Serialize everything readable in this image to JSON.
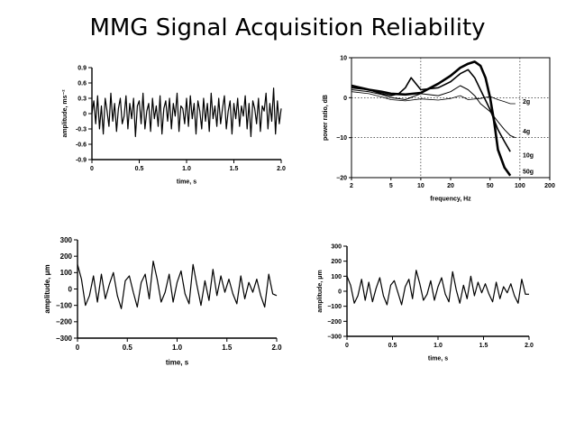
{
  "slide": {
    "title": "MMG Signal Acquisition Reliability"
  },
  "chart_data": [
    {
      "type": "line",
      "id": "acc",
      "title": "",
      "xlabel": "time, s",
      "ylabel": "amplitude, ms⁻²",
      "xlim": [
        0,
        2.0
      ],
      "ylim": [
        -0.9,
        0.9
      ],
      "xticks": [
        0,
        0.5,
        1.0,
        1.5,
        2.0
      ],
      "xtick_labels": [
        "0",
        "0.5",
        "1.0",
        "1.5",
        "2.0"
      ],
      "yticks": [
        0.9,
        0.6,
        0.3,
        0,
        -0.3,
        -0.6,
        -0.9
      ],
      "ytick_labels": [
        "0.9",
        "0.6",
        "0.3",
        "0",
        "-0.3",
        "-0.6",
        "-0.9"
      ],
      "x": [
        0,
        0.02,
        0.04,
        0.06,
        0.08,
        0.1,
        0.12,
        0.14,
        0.16,
        0.18,
        0.2,
        0.22,
        0.24,
        0.26,
        0.28,
        0.3,
        0.32,
        0.34,
        0.36,
        0.38,
        0.4,
        0.42,
        0.44,
        0.46,
        0.48,
        0.5,
        0.52,
        0.54,
        0.56,
        0.58,
        0.6,
        0.62,
        0.64,
        0.66,
        0.68,
        0.7,
        0.72,
        0.74,
        0.76,
        0.78,
        0.8,
        0.82,
        0.84,
        0.86,
        0.88,
        0.9,
        0.92,
        0.94,
        0.96,
        0.98,
        1.0,
        1.02,
        1.04,
        1.06,
        1.08,
        1.1,
        1.12,
        1.14,
        1.16,
        1.18,
        1.2,
        1.22,
        1.24,
        1.26,
        1.28,
        1.3,
        1.32,
        1.34,
        1.36,
        1.38,
        1.4,
        1.42,
        1.44,
        1.46,
        1.48,
        1.5,
        1.52,
        1.54,
        1.56,
        1.58,
        1.6,
        1.62,
        1.64,
        1.66,
        1.68,
        1.7,
        1.72,
        1.74,
        1.76,
        1.78,
        1.8,
        1.82,
        1.84,
        1.86,
        1.88,
        1.9,
        1.92,
        1.94,
        1.96,
        1.98,
        2.0
      ],
      "y": [
        0.0,
        0.25,
        -0.2,
        0.35,
        -0.3,
        0.15,
        -0.4,
        0.3,
        0.05,
        -0.25,
        0.4,
        -0.15,
        0.2,
        -0.35,
        0.1,
        0.3,
        -0.2,
        -0.05,
        0.35,
        -0.3,
        0.2,
        -0.1,
        0.3,
        -0.45,
        0.15,
        0.25,
        -0.2,
        0.4,
        -0.3,
        0.05,
        0.2,
        -0.35,
        0.3,
        -0.1,
        0.15,
        -0.25,
        0.35,
        -0.4,
        0.1,
        0.25,
        -0.15,
        0.3,
        -0.3,
        0.2,
        -0.05,
        0.4,
        -0.35,
        0.15,
        0.1,
        -0.2,
        0.3,
        -0.25,
        0.35,
        -0.1,
        0.2,
        -0.4,
        0.25,
        0.05,
        -0.3,
        0.3,
        -0.15,
        0.2,
        -0.35,
        0.4,
        -0.1,
        0.15,
        -0.25,
        0.3,
        -0.2,
        0.1,
        0.35,
        -0.3,
        0.05,
        0.25,
        -0.4,
        0.2,
        -0.1,
        0.3,
        -0.25,
        0.15,
        -0.05,
        0.35,
        -0.3,
        0.2,
        -0.45,
        0.25,
        0.1,
        -0.2,
        0.3,
        -0.35,
        0.15,
        0.05,
        0.4,
        -0.3,
        0.2,
        -0.15,
        0.5,
        -0.4,
        0.25,
        -0.2,
        0.1
      ]
    },
    {
      "type": "line",
      "id": "spectrum",
      "title": "",
      "xlabel": "frequency, Hz",
      "ylabel": "power ratio, dB",
      "xscale": "log",
      "xlim": [
        2,
        200
      ],
      "ylim": [
        -20,
        10
      ],
      "xticks": [
        2,
        5,
        10,
        20,
        50,
        100,
        200
      ],
      "xtick_labels": [
        "2",
        "5",
        "10",
        "20",
        "50",
        "100",
        "200"
      ],
      "yticks": [
        10,
        0,
        -10,
        -20
      ],
      "ytick_labels": [
        "10",
        "0",
        "−10",
        "−20"
      ],
      "gridlines_x": [
        10,
        100
      ],
      "gridlines_y": [
        0,
        -10
      ],
      "series": [
        {
          "name": "2g",
          "x": [
            2,
            3,
            4,
            5,
            7,
            10,
            15,
            20,
            25,
            30,
            40,
            50,
            60,
            70,
            80,
            90
          ],
          "y": [
            1.5,
            1.0,
            0.2,
            -0.5,
            -0.8,
            -0.3,
            -0.6,
            -0.2,
            0.5,
            -0.5,
            -0.2,
            0.3,
            -0.5,
            -1.0,
            -1.5,
            -1.5
          ]
        },
        {
          "name": "4g",
          "x": [
            2,
            3,
            4,
            5,
            7,
            10,
            15,
            20,
            25,
            30,
            35,
            40,
            50,
            60,
            70,
            80,
            90
          ],
          "y": [
            2.0,
            1.5,
            0.8,
            0.0,
            -0.5,
            1.0,
            0.5,
            1.5,
            3.0,
            2.0,
            0.5,
            -1.5,
            -3.5,
            -6.0,
            -8.0,
            -9.5,
            -10.0
          ]
        },
        {
          "name": "10g",
          "x": [
            2,
            3,
            4,
            5,
            6,
            7,
            8,
            10,
            15,
            20,
            25,
            30,
            35,
            40,
            50,
            60,
            70,
            80
          ],
          "y": [
            2.5,
            2.0,
            1.0,
            0.5,
            1.0,
            2.5,
            5.0,
            2.0,
            2.5,
            4.0,
            6.0,
            7.0,
            5.0,
            2.0,
            -3.0,
            -8.0,
            -11.0,
            -13.5
          ]
        },
        {
          "name": "50g",
          "x": [
            2,
            3,
            4,
            5,
            7,
            10,
            15,
            20,
            25,
            30,
            35,
            40,
            45,
            50,
            55,
            60,
            70,
            80
          ],
          "y": [
            3.0,
            2.0,
            1.5,
            1.0,
            0.8,
            1.2,
            3.5,
            5.5,
            7.5,
            8.5,
            9.0,
            8.0,
            5.0,
            0.0,
            -6.0,
            -13.0,
            -17.5,
            -19.5
          ]
        }
      ]
    },
    {
      "type": "line",
      "id": "disp1",
      "title": "",
      "xlabel": "time, s",
      "ylabel": "amplitude, μm",
      "xlim": [
        0,
        2.0
      ],
      "ylim": [
        -300,
        300
      ],
      "xticks": [
        0,
        0.5,
        1.0,
        1.5,
        2.0
      ],
      "xtick_labels": [
        "0",
        "0.5",
        "1.0",
        "1.5",
        "2.0"
      ],
      "yticks": [
        300,
        200,
        100,
        0,
        -100,
        -200,
        -300
      ],
      "ytick_labels": [
        "300",
        "200",
        "100",
        "0",
        "−100",
        "−200",
        "−300"
      ],
      "x": [
        0,
        0.04,
        0.08,
        0.12,
        0.16,
        0.2,
        0.24,
        0.28,
        0.32,
        0.36,
        0.4,
        0.44,
        0.48,
        0.52,
        0.56,
        0.6,
        0.64,
        0.68,
        0.72,
        0.76,
        0.8,
        0.84,
        0.88,
        0.92,
        0.96,
        1.0,
        1.04,
        1.08,
        1.12,
        1.16,
        1.2,
        1.24,
        1.28,
        1.32,
        1.36,
        1.4,
        1.44,
        1.48,
        1.52,
        1.56,
        1.6,
        1.64,
        1.68,
        1.72,
        1.76,
        1.8,
        1.84,
        1.88,
        1.92,
        1.96,
        2.0
      ],
      "y": [
        150,
        60,
        -100,
        -40,
        80,
        -80,
        90,
        -60,
        30,
        100,
        -40,
        -120,
        50,
        80,
        -20,
        -110,
        40,
        90,
        -60,
        170,
        60,
        -80,
        -20,
        90,
        -80,
        40,
        110,
        -30,
        -90,
        150,
        20,
        -100,
        50,
        -70,
        120,
        -40,
        80,
        -20,
        60,
        -30,
        -90,
        80,
        -60,
        40,
        -20,
        60,
        -40,
        -110,
        90,
        -30,
        -40
      ]
    },
    {
      "type": "line",
      "id": "disp2",
      "title": "",
      "xlabel": "time, s",
      "ylabel": "amplitude, μm",
      "xlim": [
        0,
        2.0
      ],
      "ylim": [
        -300,
        300
      ],
      "xticks": [
        0,
        0.5,
        1.0,
        1.5,
        2.0
      ],
      "xtick_labels": [
        "0",
        "0.5",
        "1.0",
        "1.5",
        "2.0"
      ],
      "yticks": [
        300,
        200,
        100,
        0,
        -100,
        -200,
        -300
      ],
      "ytick_labels": [
        "300",
        "200",
        "100",
        "0",
        "−100",
        "−200",
        "−300"
      ],
      "x": [
        0,
        0.04,
        0.08,
        0.12,
        0.16,
        0.2,
        0.24,
        0.28,
        0.32,
        0.36,
        0.4,
        0.44,
        0.48,
        0.52,
        0.56,
        0.6,
        0.64,
        0.68,
        0.72,
        0.76,
        0.8,
        0.84,
        0.88,
        0.92,
        0.96,
        1.0,
        1.04,
        1.08,
        1.12,
        1.16,
        1.2,
        1.24,
        1.28,
        1.32,
        1.36,
        1.4,
        1.44,
        1.48,
        1.52,
        1.56,
        1.6,
        1.64,
        1.68,
        1.72,
        1.76,
        1.8,
        1.84,
        1.88,
        1.92,
        1.96,
        2.0
      ],
      "y": [
        100,
        40,
        -80,
        -30,
        80,
        -60,
        60,
        -70,
        20,
        90,
        -30,
        -90,
        40,
        70,
        -10,
        -90,
        30,
        80,
        -50,
        140,
        50,
        -60,
        -20,
        70,
        -60,
        30,
        90,
        -20,
        -70,
        130,
        10,
        -80,
        40,
        -50,
        100,
        -30,
        60,
        -10,
        50,
        -20,
        -70,
        60,
        -50,
        30,
        -10,
        50,
        -30,
        -80,
        80,
        -20,
        -20
      ]
    }
  ]
}
